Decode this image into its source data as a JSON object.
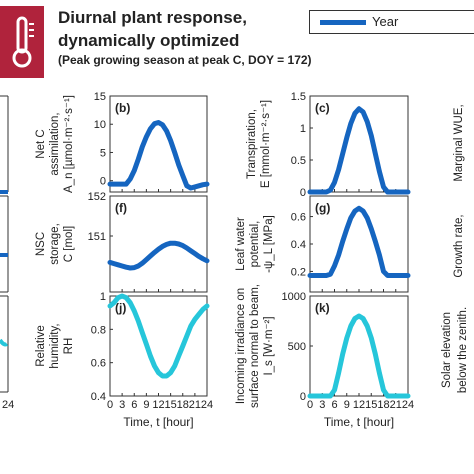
{
  "header": {
    "title_line1": "Diurnal plant response,",
    "title_line2": "dynamically optimized",
    "subtitle": "(Peak growing season at peak C, DOY = 172)"
  },
  "legend": {
    "label": "Year",
    "color": "#1565c0"
  },
  "icon": "thermometer-icon",
  "colors": {
    "blue": "#1565c0",
    "cyan": "#26c6da",
    "text": "#222222"
  },
  "chart_data": [
    {
      "panel": "(b)",
      "type": "line",
      "color": "#1565c0",
      "ylabel_lines": [
        "Net C",
        "assimilation,",
        "A_n [µmol·m⁻²·s⁻¹]"
      ],
      "ylim": [
        -2,
        15
      ],
      "yticks": [
        "0",
        "5",
        "10",
        "15"
      ],
      "ytick_values": [
        0,
        5,
        10,
        15
      ],
      "xlim": [
        0,
        24
      ],
      "show_xticklabels": false,
      "x": [
        0,
        1,
        2,
        3,
        4,
        5,
        6,
        7,
        8,
        9,
        10,
        11,
        12,
        13,
        14,
        15,
        16,
        17,
        18,
        19,
        20,
        21,
        22,
        23,
        24
      ],
      "y": [
        -0.6,
        -0.6,
        -0.6,
        -0.6,
        -0.6,
        0.3,
        1.8,
        3.8,
        6.0,
        7.8,
        9.2,
        10.1,
        10.3,
        9.9,
        8.8,
        7.1,
        5.0,
        2.8,
        0.9,
        -0.9,
        -1.3,
        -1.1,
        -0.9,
        -0.7,
        -0.6
      ]
    },
    {
      "panel": "(c)",
      "type": "line",
      "color": "#1565c0",
      "ylabel_lines": [
        "Transpiration,",
        "E [mmol·m⁻²·s⁻¹]"
      ],
      "ylim": [
        0,
        1.5
      ],
      "yticks": [
        "0",
        "0.5",
        "1",
        "1.5"
      ],
      "ytick_values": [
        0,
        0.5,
        1,
        1.5
      ],
      "xlim": [
        0,
        24
      ],
      "show_xticklabels": false,
      "x": [
        0,
        1,
        2,
        3,
        4,
        5,
        6,
        7,
        8,
        9,
        10,
        11,
        12,
        13,
        14,
        15,
        16,
        17,
        18,
        19,
        20,
        21,
        22,
        23,
        24
      ],
      "y": [
        0,
        0,
        0,
        0,
        0,
        0.03,
        0.15,
        0.35,
        0.6,
        0.85,
        1.07,
        1.23,
        1.3,
        1.25,
        1.1,
        0.88,
        0.6,
        0.32,
        0.08,
        0,
        0,
        0,
        0,
        0,
        0
      ]
    },
    {
      "panel": "(f)",
      "type": "line",
      "color": "#1565c0",
      "ylabel_lines": [
        "NSC",
        "storage,",
        "C [mol]"
      ],
      "ylim": [
        149.6,
        152
      ],
      "yticks": [
        "151",
        "152"
      ],
      "ytick_values": [
        151,
        152
      ],
      "xlim": [
        0,
        24
      ],
      "show_xticklabels": false,
      "x": [
        0,
        1,
        2,
        3,
        4,
        5,
        6,
        7,
        8,
        9,
        10,
        11,
        12,
        13,
        14,
        15,
        16,
        17,
        18,
        19,
        20,
        21,
        22,
        23,
        24
      ],
      "y": [
        150.34,
        150.31,
        150.28,
        150.25,
        150.22,
        150.2,
        150.21,
        150.25,
        150.32,
        150.41,
        150.5,
        150.59,
        150.67,
        150.74,
        150.79,
        150.82,
        150.82,
        150.8,
        150.76,
        150.7,
        150.63,
        150.56,
        150.49,
        150.43,
        150.38
      ]
    },
    {
      "panel": "(g)",
      "type": "line",
      "color": "#1565c0",
      "ylabel_lines": [
        "Leaf water",
        "potential,",
        "-ψ_L [MPa]"
      ],
      "ylim": [
        0.05,
        0.75
      ],
      "yticks": [
        "0.2",
        "0.4",
        "0.6"
      ],
      "ytick_values": [
        0.2,
        0.4,
        0.6
      ],
      "xlim": [
        0,
        24
      ],
      "show_xticklabels": false,
      "x": [
        0,
        1,
        2,
        3,
        4,
        5,
        6,
        7,
        8,
        9,
        10,
        11,
        12,
        13,
        14,
        15,
        16,
        17,
        18,
        19,
        20,
        21,
        22,
        23,
        24
      ],
      "y": [
        0.17,
        0.17,
        0.17,
        0.17,
        0.17,
        0.18,
        0.24,
        0.32,
        0.42,
        0.51,
        0.59,
        0.64,
        0.66,
        0.64,
        0.59,
        0.51,
        0.42,
        0.32,
        0.2,
        0.17,
        0.17,
        0.17,
        0.17,
        0.17,
        0.17
      ]
    },
    {
      "panel": "(j)",
      "type": "line",
      "color": "#26c6da",
      "ylabel_lines": [
        "Relative",
        "humidity,",
        "RH"
      ],
      "ylim": [
        0.4,
        1.0
      ],
      "yticks": [
        "0.4",
        "0.6",
        "0.8",
        "1"
      ],
      "ytick_values": [
        0.4,
        0.6,
        0.8,
        1.0
      ],
      "xlim": [
        0,
        24
      ],
      "xticks": [
        "0",
        "3",
        "6",
        "9",
        "12",
        "15",
        "18",
        "21",
        "24"
      ],
      "xtick_values": [
        0,
        3,
        6,
        9,
        12,
        15,
        18,
        21,
        24
      ],
      "xlabel": "Time, t [hour]",
      "show_xticklabels": true,
      "x": [
        0,
        1,
        2,
        3,
        4,
        5,
        6,
        7,
        8,
        9,
        10,
        11,
        12,
        13,
        14,
        15,
        16,
        17,
        18,
        19,
        20,
        21,
        22,
        23,
        24
      ],
      "y": [
        0.94,
        0.96,
        0.99,
        1.0,
        0.99,
        0.96,
        0.91,
        0.85,
        0.78,
        0.71,
        0.64,
        0.58,
        0.54,
        0.52,
        0.52,
        0.54,
        0.58,
        0.64,
        0.7,
        0.76,
        0.82,
        0.86,
        0.89,
        0.92,
        0.94
      ]
    },
    {
      "panel": "(k)",
      "type": "line",
      "color": "#26c6da",
      "ylabel_lines": [
        "Incoming irradiance on",
        "surface normal to beam,",
        "I_s [W·m⁻²]"
      ],
      "ylim": [
        0,
        1000
      ],
      "yticks": [
        "0",
        "500",
        "1000"
      ],
      "ytick_values": [
        0,
        500,
        1000
      ],
      "xlim": [
        0,
        24
      ],
      "xticks": [
        "0",
        "3",
        "6",
        "9",
        "12",
        "15",
        "18",
        "21",
        "24"
      ],
      "xtick_values": [
        0,
        3,
        6,
        9,
        12,
        15,
        18,
        21,
        24
      ],
      "xlabel": "Time, t [hour]",
      "show_xticklabels": true,
      "x": [
        0,
        1,
        2,
        3,
        4,
        5,
        6,
        7,
        8,
        9,
        10,
        11,
        12,
        13,
        14,
        15,
        16,
        17,
        18,
        19,
        20,
        21,
        22,
        23,
        24
      ],
      "y": [
        0,
        0,
        0,
        0,
        0,
        0,
        60,
        230,
        420,
        580,
        700,
        775,
        800,
        775,
        700,
        580,
        420,
        230,
        60,
        0,
        0,
        0,
        0,
        0,
        0
      ]
    }
  ],
  "edge_fragments": {
    "left_xtick_label": "24",
    "right_labels": [
      "Marginal WUE,",
      "Growth rate,",
      "Solar elevation",
      "below the zenith."
    ]
  }
}
